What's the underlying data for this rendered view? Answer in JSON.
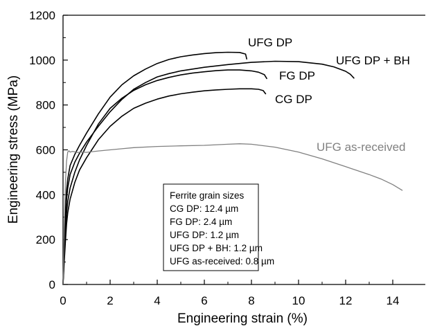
{
  "chart_data": {
    "type": "line",
    "title": "",
    "xlabel": "Engineering strain (%)",
    "ylabel": "Engineering stress (MPa)",
    "xlim": [
      0,
      15
    ],
    "ylim": [
      0,
      1200
    ],
    "xticks": [
      0,
      2,
      4,
      6,
      8,
      10,
      12,
      14
    ],
    "yticks": [
      0,
      200,
      400,
      600,
      800,
      1000,
      1200
    ],
    "grid": false,
    "legend": {
      "placement": "bottom-center",
      "lines": [
        "Ferrite grain sizes",
        "CG DP: 12.4 µm",
        "FG DP: 2.4 µm",
        "UFG DP: 1.2 µm",
        "UFG DP + BH: 1.2 µm",
        "UFG as-received: 0.8 µm"
      ]
    },
    "series": [
      {
        "name": "UFG DP",
        "color": "#000000",
        "x": [
          0,
          0.05,
          0.1,
          0.15,
          0.2,
          0.3,
          0.5,
          0.7,
          1,
          1.5,
          2,
          2.5,
          3,
          3.5,
          4,
          4.5,
          5,
          5.5,
          6,
          6.5,
          7,
          7.5,
          7.75,
          7.8
        ],
        "y": [
          0,
          180,
          320,
          420,
          470,
          530,
          580,
          620,
          675,
          760,
          835,
          890,
          930,
          960,
          985,
          1003,
          1015,
          1023,
          1029,
          1033,
          1035,
          1034,
          1027,
          1005
        ]
      },
      {
        "name": "UFG DP + BH",
        "color": "#000000",
        "x": [
          0,
          0.05,
          0.1,
          0.15,
          0.2,
          0.3,
          0.5,
          0.7,
          1,
          1.5,
          2,
          2.5,
          3,
          3.5,
          4,
          4.5,
          5,
          6,
          7,
          8,
          9,
          10,
          11,
          11.5,
          12,
          12.2,
          12.35
        ],
        "y": [
          0,
          160,
          290,
          380,
          430,
          490,
          545,
          585,
          635,
          705,
          770,
          825,
          870,
          900,
          925,
          940,
          952,
          968,
          980,
          990,
          995,
          993,
          982,
          970,
          950,
          937,
          920
        ]
      },
      {
        "name": "FG DP",
        "color": "#000000",
        "x": [
          0,
          0.05,
          0.1,
          0.15,
          0.2,
          0.3,
          0.5,
          0.7,
          1,
          1.5,
          2,
          2.5,
          3,
          3.5,
          4,
          4.5,
          5,
          5.5,
          6,
          6.5,
          7,
          7.5,
          8,
          8.3,
          8.55,
          8.65
        ],
        "y": [
          0,
          130,
          240,
          320,
          370,
          430,
          500,
          555,
          620,
          715,
          785,
          830,
          865,
          890,
          909,
          923,
          934,
          942,
          948,
          953,
          956,
          956,
          952,
          946,
          935,
          918
        ]
      },
      {
        "name": "CG DP",
        "color": "#000000",
        "x": [
          0,
          0.05,
          0.1,
          0.15,
          0.2,
          0.3,
          0.5,
          0.7,
          1,
          1.5,
          2,
          2.5,
          3,
          3.5,
          4,
          4.5,
          5,
          5.5,
          6,
          6.5,
          7,
          7.5,
          8,
          8.3,
          8.5,
          8.6
        ],
        "y": [
          0,
          100,
          190,
          270,
          320,
          380,
          455,
          510,
          565,
          645,
          705,
          750,
          785,
          808,
          826,
          840,
          850,
          857,
          863,
          867,
          870,
          872,
          872,
          870,
          864,
          850
        ]
      },
      {
        "name": "UFG as-received",
        "color": "#808080",
        "x": [
          0,
          0.05,
          0.1,
          0.15,
          0.2,
          0.25,
          0.3,
          0.4,
          0.5,
          0.6,
          0.8,
          1,
          1.5,
          2,
          2.5,
          3,
          4,
          5,
          6,
          7,
          7.5,
          8,
          9,
          10,
          11,
          12,
          13,
          13.5,
          14,
          14.4
        ],
        "y": [
          0,
          250,
          450,
          550,
          590,
          596,
          590,
          593,
          591,
          588,
          590,
          589,
          595,
          600,
          605,
          610,
          615,
          618,
          620,
          625,
          627,
          625,
          612,
          590,
          560,
          525,
          490,
          470,
          445,
          420
        ]
      }
    ],
    "annotations": [
      {
        "text": "UFG DP",
        "series": 0
      },
      {
        "text": "UFG DP + BH",
        "series": 1
      },
      {
        "text": "FG DP",
        "series": 2
      },
      {
        "text": "CG DP",
        "series": 3
      },
      {
        "text": "UFG as-received",
        "series": 4
      }
    ]
  }
}
